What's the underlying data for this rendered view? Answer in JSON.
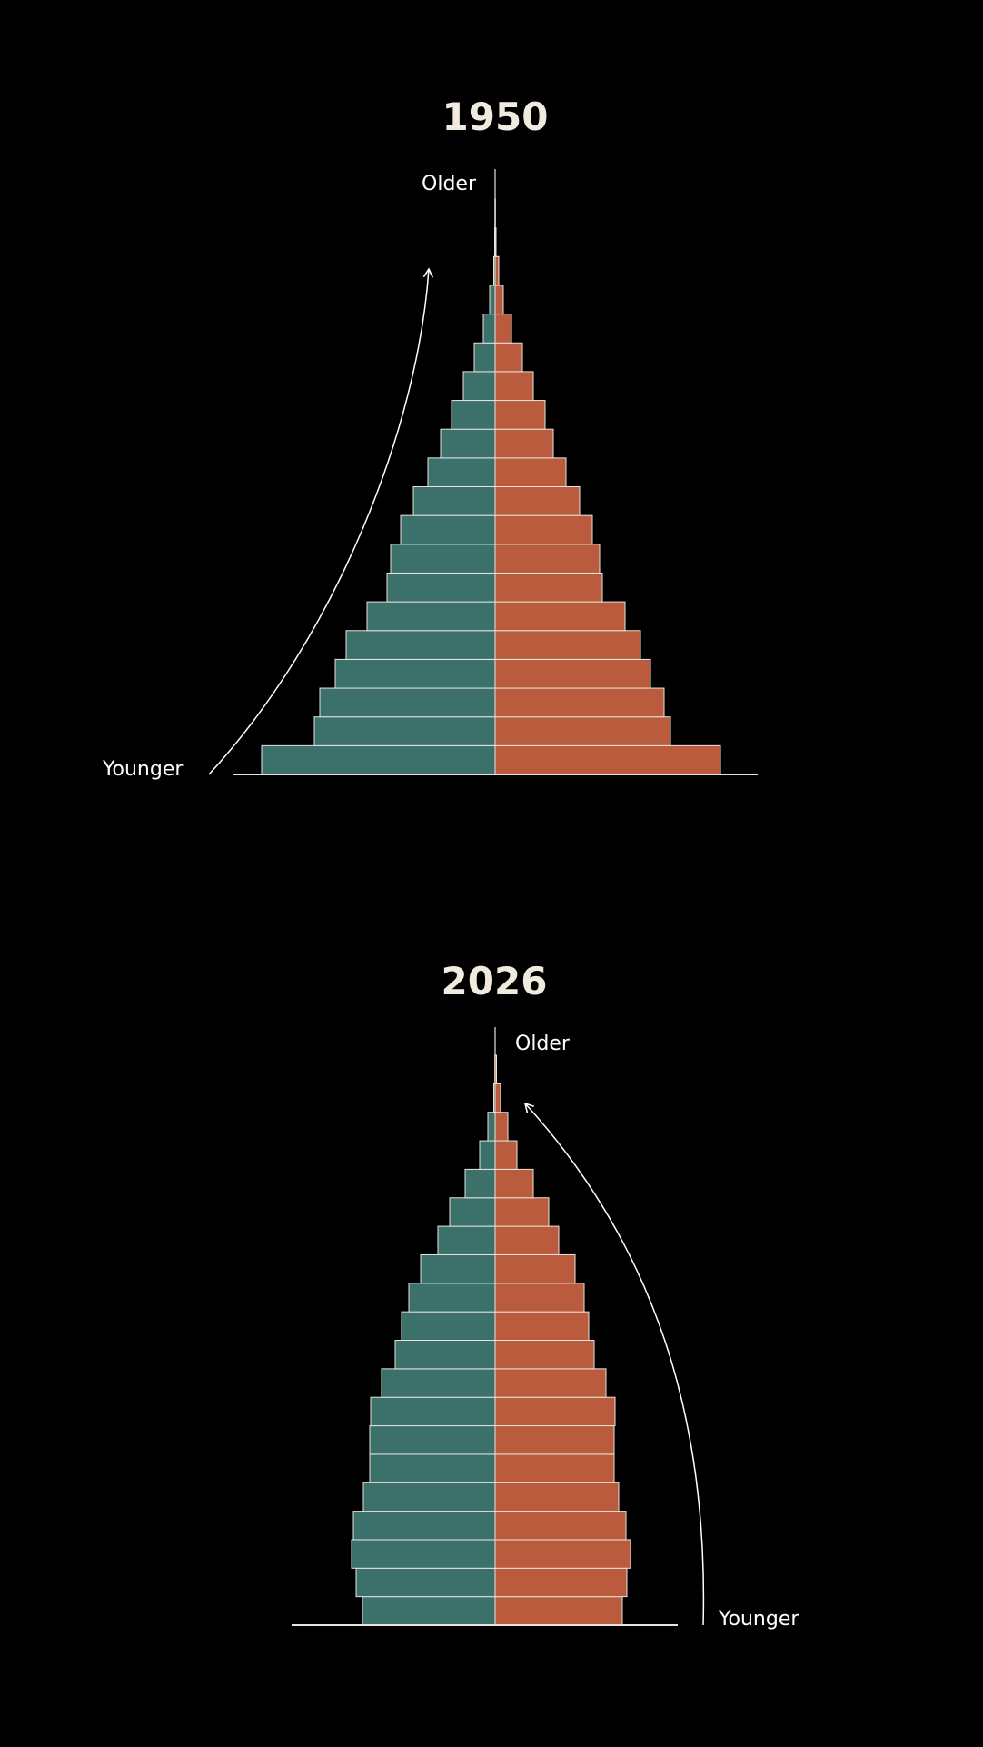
{
  "colors": {
    "male": "#3b706b",
    "female": "#b95b3c",
    "background": "#000000",
    "title": "#f1ebdf",
    "stroke": "#e8e4dc"
  },
  "chart_data": [
    {
      "type": "bar",
      "orientation": "horizontal",
      "layout": "population-pyramid",
      "title": "1950",
      "annotations": {
        "top": "Older",
        "bottom": "Younger"
      },
      "arrow_side": "left",
      "series": [
        {
          "side": "left",
          "values": [
            257,
            199,
            193,
            176,
            164,
            141,
            119,
            115,
            104,
            90,
            74,
            60,
            48,
            35,
            23,
            13,
            6,
            1.5,
            0.5,
            0.2
          ]
        },
        {
          "side": "right",
          "values": [
            248,
            193,
            186,
            171,
            160,
            143,
            118,
            115,
            107,
            93,
            78,
            64,
            55,
            42,
            30,
            18,
            9,
            4,
            1,
            0.3
          ]
        }
      ]
    },
    {
      "type": "bar",
      "orientation": "horizontal",
      "layout": "population-pyramid",
      "title": "2026",
      "annotations": {
        "top": "Older",
        "bottom": "Younger"
      },
      "arrow_side": "right",
      "series": [
        {
          "side": "left",
          "values": [
            146,
            153,
            158,
            156,
            145,
            138,
            138,
            137,
            125,
            110,
            103,
            95,
            82,
            63,
            50,
            33,
            17,
            8,
            1.5,
            0.3
          ]
        },
        {
          "side": "right",
          "values": [
            140,
            145,
            149,
            144,
            136,
            131,
            131,
            132,
            122,
            109,
            103,
            98,
            88,
            70,
            59,
            42,
            24,
            14,
            6,
            1.5
          ]
        }
      ]
    }
  ]
}
